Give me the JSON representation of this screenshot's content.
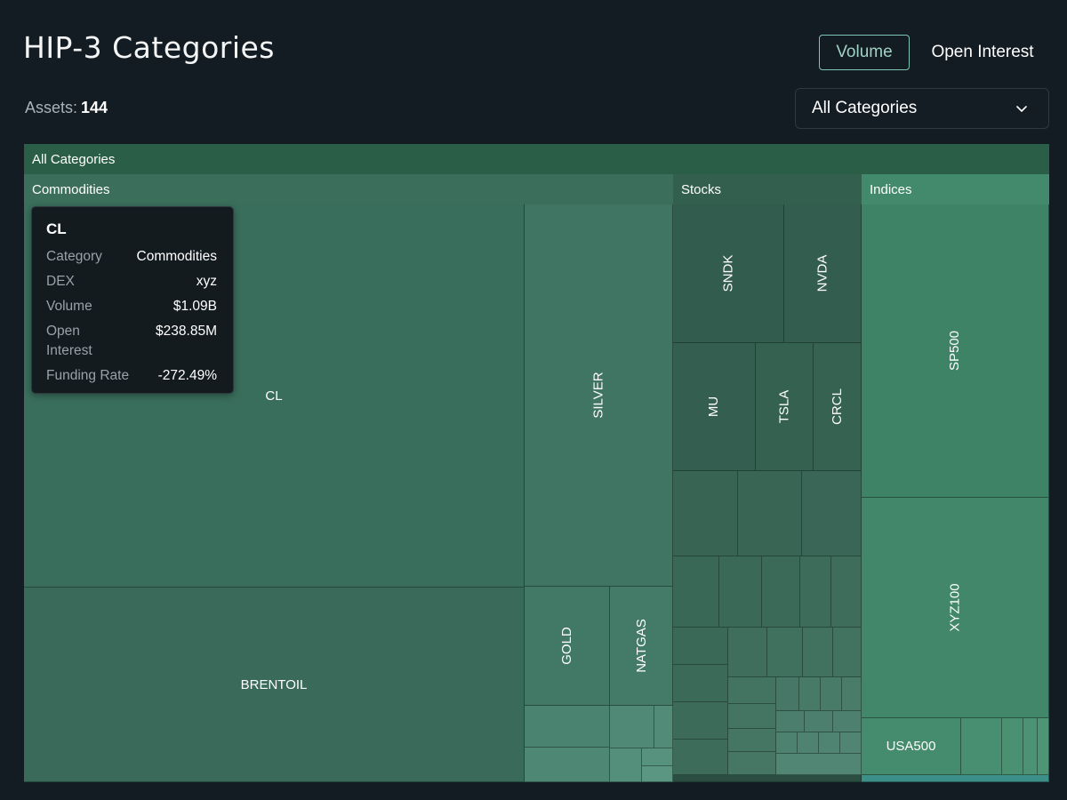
{
  "page": {
    "title": "HIP-3 Categories",
    "metric_toggle": {
      "options": [
        "Volume",
        "Open Interest"
      ],
      "selected": "Volume"
    },
    "assets_label": "Assets:",
    "assets_count": "144",
    "category_select": {
      "selected": "All Categories",
      "icon": "chevron-down-icon"
    }
  },
  "treemap": {
    "root_label": "All Categories",
    "groups": [
      {
        "label": "Commodities",
        "color": "#3a6e5c"
      },
      {
        "label": "Stocks",
        "color": "#325c4d"
      },
      {
        "label": "Indices",
        "color": "#3f8367"
      }
    ],
    "cells": {
      "CL": "CL",
      "BRENTOIL": "BRENTOIL",
      "SILVER": "SILVER",
      "GOLD": "GOLD",
      "NATGAS": "NATGAS",
      "SNDK": "SNDK",
      "NVDA": "NVDA",
      "MU": "MU",
      "TSLA": "TSLA",
      "CRCL": "CRCL",
      "SP500": "SP500",
      "XYZ100": "XYZ100",
      "USA500": "USA500"
    }
  },
  "tooltip": {
    "title": "CL",
    "rows": [
      {
        "key": "Category",
        "value": "Commodities"
      },
      {
        "key": "DEX",
        "value": "xyz"
      },
      {
        "key": "Volume",
        "value": "$1.09B"
      },
      {
        "key": "Open Interest",
        "value": "$238.85M"
      },
      {
        "key": "Funding Rate",
        "value": "-272.49%"
      }
    ]
  }
}
